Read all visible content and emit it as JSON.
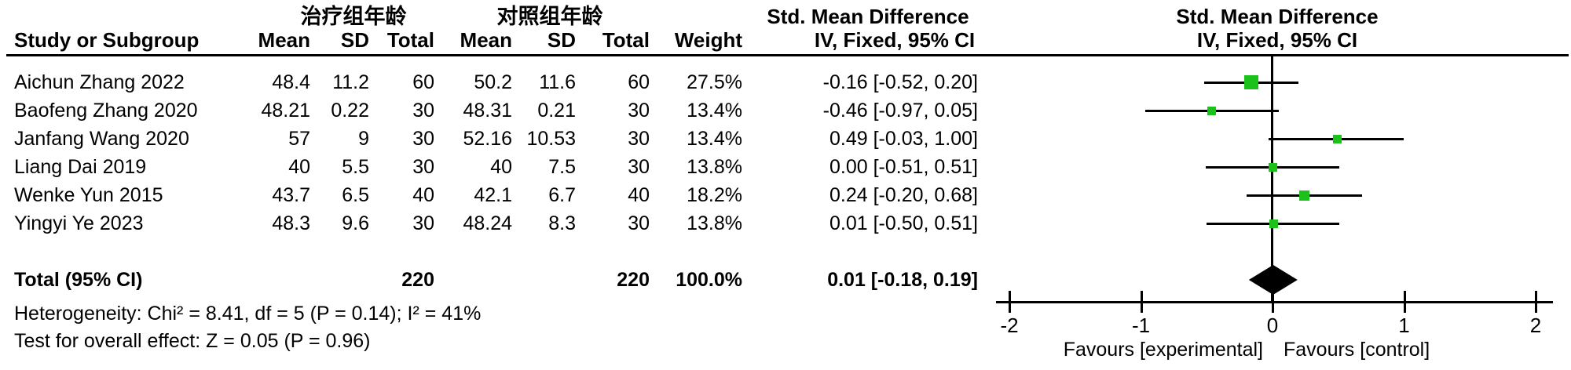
{
  "table": {
    "group1_header": "治疗组年龄",
    "group2_header": "对照组年龄",
    "effect_header_line1": "Std. Mean Difference",
    "effect_header_line2": "IV, Fixed, 95% CI",
    "plot_header_line1": "Std. Mean Difference",
    "plot_header_line2": "IV, Fixed, 95% CI",
    "col_study": "Study or Subgroup",
    "col_mean": "Mean",
    "col_sd": "SD",
    "col_total": "Total",
    "col_weight": "Weight"
  },
  "footer": {
    "heterogeneity": "Heterogeneity: Chi² = 8.41, df = 5 (P = 0.14); I² = 41%",
    "overall_effect": "Test for overall effect: Z = 0.05 (P = 0.96)"
  },
  "chart_data": {
    "type": "forest",
    "effect_measure": "Std. Mean Difference (IV, Fixed, 95% CI)",
    "marker_color": "#1cc11c",
    "diamond_color": "#000000",
    "axis": {
      "ticks": [
        -2,
        -1,
        0,
        1,
        2
      ],
      "xlim": [
        -2,
        2
      ]
    },
    "favours_left": "Favours [experimental]",
    "favours_right": "Favours [control]",
    "studies": [
      {
        "name": "Aichun Zhang 2022",
        "mean1": "48.4",
        "sd1": "11.2",
        "total1": "60",
        "mean2": "50.2",
        "sd2": "11.6",
        "total2": "60",
        "weight": "27.5%",
        "ci_text": "-0.16 [-0.52, 0.20]",
        "est": -0.16,
        "lo": -0.52,
        "hi": 0.2,
        "weight_pct": 27.5
      },
      {
        "name": "Baofeng Zhang 2020",
        "mean1": "48.21",
        "sd1": "0.22",
        "total1": "30",
        "mean2": "48.31",
        "sd2": "0.21",
        "total2": "30",
        "weight": "13.4%",
        "ci_text": "-0.46 [-0.97, 0.05]",
        "est": -0.46,
        "lo": -0.97,
        "hi": 0.05,
        "weight_pct": 13.4
      },
      {
        "name": "Janfang Wang 2020",
        "mean1": "57",
        "sd1": "9",
        "total1": "30",
        "mean2": "52.16",
        "sd2": "10.53",
        "total2": "30",
        "weight": "13.4%",
        "ci_text": "0.49 [-0.03, 1.00]",
        "est": 0.49,
        "lo": -0.03,
        "hi": 1.0,
        "weight_pct": 13.4
      },
      {
        "name": "Liang Dai 2019",
        "mean1": "40",
        "sd1": "5.5",
        "total1": "30",
        "mean2": "40",
        "sd2": "7.5",
        "total2": "30",
        "weight": "13.8%",
        "ci_text": "0.00 [-0.51, 0.51]",
        "est": 0.0,
        "lo": -0.51,
        "hi": 0.51,
        "weight_pct": 13.8
      },
      {
        "name": "Wenke Yun 2015",
        "mean1": "43.7",
        "sd1": "6.5",
        "total1": "40",
        "mean2": "42.1",
        "sd2": "6.7",
        "total2": "40",
        "weight": "18.2%",
        "ci_text": "0.24 [-0.20, 0.68]",
        "est": 0.24,
        "lo": -0.2,
        "hi": 0.68,
        "weight_pct": 18.2
      },
      {
        "name": "Yingyi Ye 2023",
        "mean1": "48.3",
        "sd1": "9.6",
        "total1": "30",
        "mean2": "48.24",
        "sd2": "8.3",
        "total2": "30",
        "weight": "13.8%",
        "ci_text": "0.01 [-0.50, 0.51]",
        "est": 0.01,
        "lo": -0.5,
        "hi": 0.51,
        "weight_pct": 13.8
      }
    ],
    "total": {
      "label": "Total (95% CI)",
      "total1": "220",
      "total2": "220",
      "weight": "100.0%",
      "ci_text": "0.01 [-0.18, 0.19]",
      "est": 0.01,
      "lo": -0.18,
      "hi": 0.19
    }
  }
}
